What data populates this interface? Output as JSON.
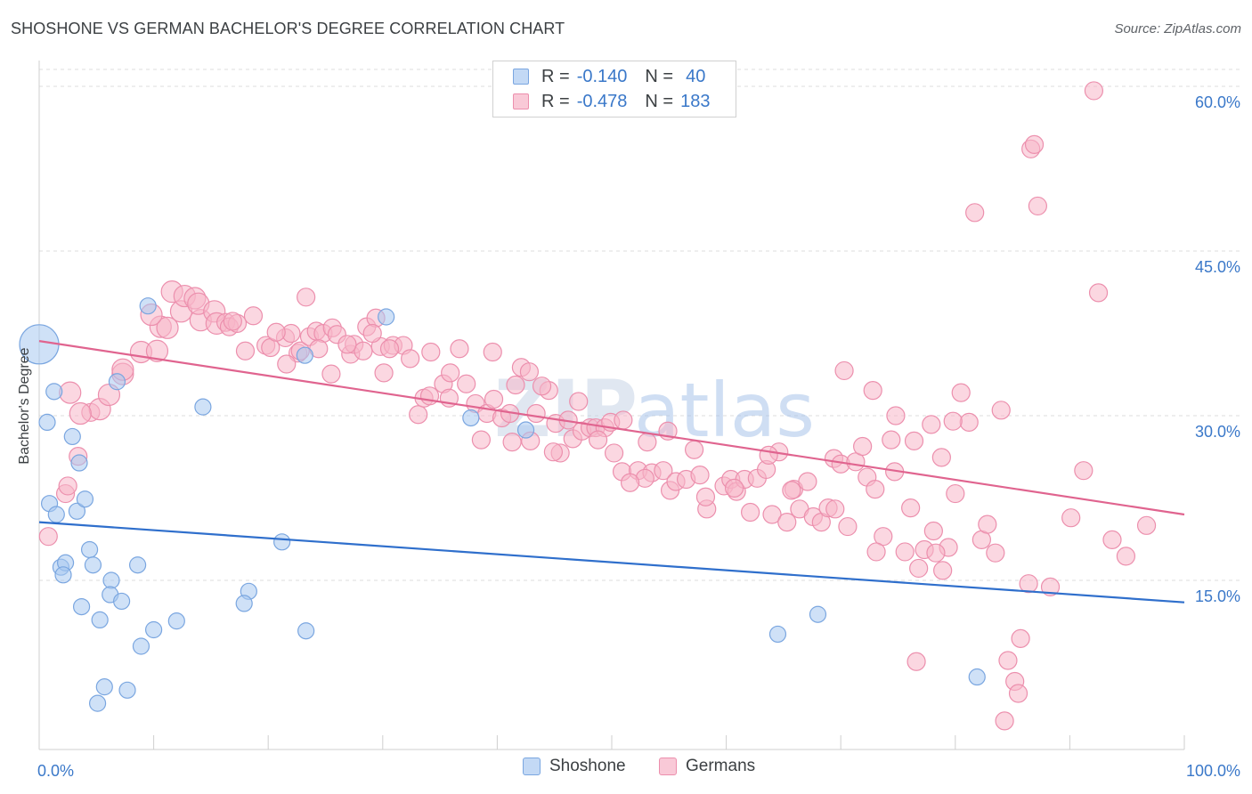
{
  "header": {
    "title": "SHOSHONE VS GERMAN BACHELOR'S DEGREE CORRELATION CHART",
    "source": "Source: ZipAtlas.com"
  },
  "legend": {
    "shoshone": {
      "r_label": "R =",
      "r_value": "-0.140",
      "n_label": "N =",
      "n_value": "40"
    },
    "germans": {
      "r_label": "R =",
      "r_value": "-0.478",
      "n_label": "N =",
      "n_value": "183"
    }
  },
  "bottom_legend": {
    "shoshone": "Shoshone",
    "germans": "Germans"
  },
  "watermark": {
    "zip": "ZIP",
    "atlas": "atlas"
  },
  "colors": {
    "shoshone_fill": "#a8c8f0",
    "shoshone_stroke": "#7aa6e0",
    "shoshone_line": "#2f6fcc",
    "germans_fill": "#f7b6c9",
    "germans_stroke": "#ec8fad",
    "germans_line": "#e0648f",
    "tick_label": "#3a78c9",
    "grid": "#dcdcdc"
  },
  "chart_data": {
    "type": "scatter",
    "title": "SHOSHONE VS GERMAN BACHELOR'S DEGREE CORRELATION CHART",
    "ylabel": "Bachelor's Degree",
    "xlabel": "",
    "x_tick_labels": [
      "0.0%",
      "100.0%"
    ],
    "y_tick_labels": [
      "15.0%",
      "30.0%",
      "45.0%",
      "60.0%"
    ],
    "y_ticks": [
      15,
      30,
      45,
      60
    ],
    "xlim": [
      0,
      100
    ],
    "ylim": [
      0,
      62
    ],
    "grid": true,
    "legend_position": "top-center",
    "series": [
      {
        "name": "Shoshone",
        "points": [
          [
            0,
            36.5,
            22
          ],
          [
            1.3,
            32.2,
            9
          ],
          [
            0.7,
            29.4,
            9
          ],
          [
            2.9,
            28.1,
            9
          ],
          [
            3.5,
            25.7,
            9
          ],
          [
            0.9,
            22,
            9
          ],
          [
            1.5,
            21,
            9
          ],
          [
            3.3,
            21.3,
            9
          ],
          [
            4.0,
            22.4,
            9
          ],
          [
            4.4,
            17.8,
            9
          ],
          [
            1.9,
            16.2,
            9
          ],
          [
            2.3,
            16.6,
            9
          ],
          [
            4.7,
            16.4,
            9
          ],
          [
            8.6,
            16.4,
            9
          ],
          [
            6.3,
            15,
            9
          ],
          [
            6.2,
            13.7,
            9
          ],
          [
            7.2,
            13.1,
            9
          ],
          [
            3.7,
            12.6,
            9
          ],
          [
            5.3,
            11.4,
            9
          ],
          [
            10,
            10.5,
            9
          ],
          [
            12,
            11.3,
            9
          ],
          [
            8.9,
            9,
            9
          ],
          [
            5.7,
            5.3,
            9
          ],
          [
            7.7,
            5,
            9
          ],
          [
            5.1,
            3.8,
            9
          ],
          [
            9.5,
            40,
            9
          ],
          [
            14.3,
            30.8,
            9
          ],
          [
            18.3,
            14,
            9
          ],
          [
            17.9,
            12.9,
            9
          ],
          [
            23.2,
            35.5,
            9
          ],
          [
            21.2,
            18.5,
            9
          ],
          [
            23.3,
            10.4,
            9
          ],
          [
            30.3,
            39,
            9
          ],
          [
            37.7,
            29.8,
            9
          ],
          [
            42.5,
            28.7,
            9
          ],
          [
            64.5,
            10.1,
            9
          ],
          [
            68,
            11.9,
            9
          ],
          [
            81.9,
            6.2,
            9
          ],
          [
            6.8,
            33.1,
            9
          ],
          [
            2.1,
            15.5,
            9
          ]
        ]
      },
      {
        "name": "Germans",
        "points": [
          [
            0.8,
            19,
            10
          ],
          [
            2.3,
            22.9,
            10
          ],
          [
            2.5,
            23.6,
            10
          ],
          [
            3.4,
            26.3,
            10
          ],
          [
            4.5,
            30.3,
            10
          ],
          [
            5.3,
            30.6,
            12
          ],
          [
            6.1,
            31.9,
            12
          ],
          [
            7.3,
            33.8,
            12
          ],
          [
            7.3,
            34.2,
            12
          ],
          [
            8.9,
            35.8,
            12
          ],
          [
            10.3,
            35.9,
            12
          ],
          [
            10.6,
            38.1,
            12
          ],
          [
            11.2,
            38,
            12
          ],
          [
            12.4,
            39.5,
            12
          ],
          [
            14.1,
            38.7,
            12
          ],
          [
            11.6,
            41.3,
            12
          ],
          [
            12.7,
            40.9,
            12
          ],
          [
            13.6,
            40.7,
            12
          ],
          [
            13.9,
            40.2,
            12
          ],
          [
            15.3,
            39.5,
            12
          ],
          [
            15.5,
            38.4,
            12
          ],
          [
            16.3,
            38.5,
            10
          ],
          [
            16.6,
            38.1,
            10
          ],
          [
            18.7,
            39.1,
            10
          ],
          [
            18,
            35.9,
            10
          ],
          [
            19.8,
            36.4,
            10
          ],
          [
            20.2,
            36.2,
            10
          ],
          [
            21.5,
            37.1,
            10
          ],
          [
            22,
            37.5,
            10
          ],
          [
            22.6,
            35.7,
            10
          ],
          [
            22.8,
            35.9,
            10
          ],
          [
            23.6,
            37.2,
            10
          ],
          [
            24.2,
            37.7,
            10
          ],
          [
            24.8,
            37.5,
            10
          ],
          [
            25.6,
            38,
            10
          ],
          [
            26,
            37.4,
            10
          ],
          [
            23.3,
            40.8,
            10
          ],
          [
            25.5,
            33.8,
            10
          ],
          [
            27.2,
            35.6,
            10
          ],
          [
            27.5,
            36.5,
            10
          ],
          [
            28.3,
            35.9,
            10
          ],
          [
            28.6,
            38.1,
            10
          ],
          [
            29.4,
            38.9,
            10
          ],
          [
            29.8,
            36.3,
            10
          ],
          [
            30.1,
            33.9,
            10
          ],
          [
            30.9,
            36.4,
            10
          ],
          [
            31.8,
            36.4,
            10
          ],
          [
            32.4,
            35.2,
            10
          ],
          [
            33.1,
            30.1,
            10
          ],
          [
            33.6,
            31.6,
            10
          ],
          [
            34.1,
            31.8,
            10
          ],
          [
            35.3,
            32.9,
            10
          ],
          [
            35.8,
            31.6,
            10
          ],
          [
            37.3,
            32.9,
            10
          ],
          [
            38.1,
            31.1,
            10
          ],
          [
            38.6,
            27.8,
            10
          ],
          [
            39.1,
            30.2,
            10
          ],
          [
            39.7,
            31.5,
            10
          ],
          [
            40.4,
            29.8,
            10
          ],
          [
            41.1,
            30.2,
            10
          ],
          [
            41.6,
            32.8,
            10
          ],
          [
            42.1,
            34.4,
            10
          ],
          [
            42.8,
            34,
            10
          ],
          [
            43.4,
            30.2,
            10
          ],
          [
            44.5,
            32.3,
            10
          ],
          [
            45.1,
            29.3,
            10
          ],
          [
            45.5,
            26.6,
            10
          ],
          [
            46.6,
            27.9,
            10
          ],
          [
            47.4,
            28.6,
            10
          ],
          [
            48.1,
            28.9,
            10
          ],
          [
            48.6,
            28.9,
            10
          ],
          [
            49.4,
            28.9,
            10
          ],
          [
            49.9,
            29.4,
            10
          ],
          [
            50.2,
            26.6,
            10
          ],
          [
            51,
            29.6,
            10
          ],
          [
            50.9,
            24.9,
            10
          ],
          [
            52.3,
            25,
            10
          ],
          [
            53.1,
            27.6,
            10
          ],
          [
            53.5,
            24.8,
            10
          ],
          [
            54.5,
            25,
            10
          ],
          [
            55.1,
            23.2,
            10
          ],
          [
            55.6,
            24,
            10
          ],
          [
            56.5,
            24.2,
            10
          ],
          [
            57.2,
            26.9,
            10
          ],
          [
            57.7,
            24.6,
            10
          ],
          [
            58.3,
            21.5,
            10
          ],
          [
            59.8,
            23.6,
            10
          ],
          [
            60.4,
            24.2,
            10
          ],
          [
            60.9,
            23.1,
            10
          ],
          [
            61.6,
            24.2,
            10
          ],
          [
            62.1,
            21.2,
            10
          ],
          [
            62.7,
            24.3,
            10
          ],
          [
            63.5,
            25.1,
            10
          ],
          [
            64,
            21,
            10
          ],
          [
            64.6,
            26.7,
            10
          ],
          [
            65.3,
            20.3,
            10
          ],
          [
            65.9,
            23.3,
            10
          ],
          [
            66.4,
            21.5,
            10
          ],
          [
            67.1,
            24,
            10
          ],
          [
            67.6,
            20.8,
            10
          ],
          [
            68.3,
            20.3,
            10
          ],
          [
            68.9,
            21.6,
            10
          ],
          [
            69.4,
            26.1,
            10
          ],
          [
            70,
            25.6,
            10
          ],
          [
            70.6,
            19.9,
            10
          ],
          [
            71.3,
            25.8,
            10
          ],
          [
            71.9,
            27.2,
            10
          ],
          [
            72.3,
            24.4,
            10
          ],
          [
            73,
            23.3,
            10
          ],
          [
            73.7,
            19,
            10
          ],
          [
            74.4,
            27.8,
            10
          ],
          [
            74.7,
            24.9,
            10
          ],
          [
            75.6,
            17.6,
            10
          ],
          [
            76.1,
            21.6,
            10
          ],
          [
            76.8,
            16.1,
            10
          ],
          [
            77.3,
            17.8,
            10
          ],
          [
            78.1,
            19.5,
            10
          ],
          [
            78.9,
            15.9,
            10
          ],
          [
            79.4,
            18,
            10
          ],
          [
            80,
            22.9,
            10
          ],
          [
            80.5,
            32.1,
            10
          ],
          [
            81.2,
            29.4,
            10
          ],
          [
            81.7,
            48.5,
            10
          ],
          [
            82.3,
            18.7,
            10
          ],
          [
            82.8,
            20.1,
            10
          ],
          [
            83.5,
            17.5,
            10
          ],
          [
            84,
            30.5,
            10
          ],
          [
            84.6,
            7.7,
            10
          ],
          [
            85.2,
            5.8,
            10
          ],
          [
            85.7,
            9.7,
            10
          ],
          [
            86.4,
            14.7,
            10
          ],
          [
            86.6,
            54.3,
            10
          ],
          [
            86.9,
            54.7,
            10
          ],
          [
            87.2,
            49.1,
            10
          ],
          [
            88.3,
            14.4,
            10
          ],
          [
            90.1,
            20.7,
            10
          ],
          [
            91.2,
            25,
            10
          ],
          [
            92.5,
            41.2,
            10
          ],
          [
            93.7,
            18.7,
            10
          ],
          [
            94.9,
            17.2,
            10
          ],
          [
            96.7,
            20,
            10
          ],
          [
            92.1,
            59.6,
            10
          ],
          [
            85.5,
            4.7,
            10
          ],
          [
            84.3,
            2.2,
            10
          ],
          [
            76.6,
            7.6,
            10
          ],
          [
            78.3,
            17.5,
            10
          ],
          [
            70.3,
            34.1,
            10
          ],
          [
            72.8,
            32.3,
            10
          ],
          [
            74.8,
            30,
            10
          ],
          [
            76.4,
            27.7,
            10
          ],
          [
            78.8,
            26.2,
            10
          ],
          [
            77.9,
            29.2,
            10
          ],
          [
            79.8,
            29.5,
            10
          ],
          [
            73.1,
            17.6,
            10
          ],
          [
            69.5,
            21.5,
            10
          ],
          [
            65.7,
            23.2,
            10
          ],
          [
            63.7,
            26.4,
            10
          ],
          [
            60.7,
            23.4,
            10
          ],
          [
            58.2,
            22.6,
            10
          ],
          [
            54.9,
            28.6,
            10
          ],
          [
            52.9,
            24.3,
            10
          ],
          [
            51.6,
            23.9,
            10
          ],
          [
            48.8,
            27.8,
            10
          ],
          [
            47.1,
            31.3,
            10
          ],
          [
            46.2,
            29.6,
            10
          ],
          [
            44.9,
            26.7,
            10
          ],
          [
            43.9,
            32.7,
            10
          ],
          [
            42.9,
            27.7,
            10
          ],
          [
            41.3,
            27.6,
            10
          ],
          [
            39.6,
            35.8,
            10
          ],
          [
            36.7,
            36.1,
            10
          ],
          [
            35.9,
            33.9,
            10
          ],
          [
            34.2,
            35.8,
            10
          ],
          [
            30.6,
            36.1,
            10
          ],
          [
            29.1,
            37.5,
            10
          ],
          [
            26.9,
            36.5,
            10
          ],
          [
            24.4,
            36.1,
            10
          ],
          [
            21.6,
            34.7,
            10
          ],
          [
            20.7,
            37.6,
            10
          ],
          [
            17.3,
            38.4,
            10
          ],
          [
            16.9,
            38.6,
            10
          ],
          [
            9.8,
            39.2,
            12
          ],
          [
            3.6,
            30.2,
            12
          ],
          [
            2.7,
            32.1,
            12
          ]
        ]
      }
    ],
    "trend_lines": [
      {
        "series": "Shoshone",
        "x": [
          0,
          100
        ],
        "y": [
          20.3,
          13.0
        ]
      },
      {
        "series": "Germans",
        "x": [
          0,
          100
        ],
        "y": [
          36.8,
          21.0
        ]
      }
    ]
  }
}
